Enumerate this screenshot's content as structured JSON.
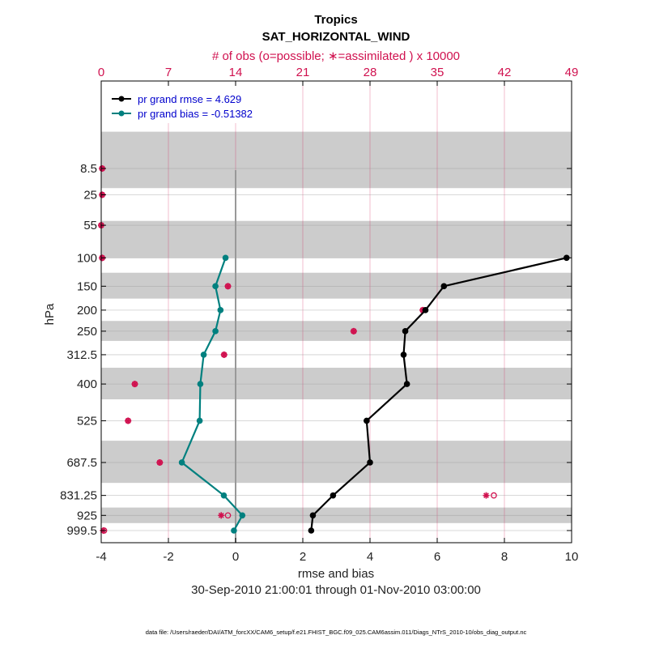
{
  "chart_data": {
    "type": "line",
    "title": "Tropics",
    "subtitle": "SAT_HORIZONTAL_WIND",
    "top_axis_label": "# of obs (o=possible; ∗=assimilated ) x 10000",
    "top_ticks": [
      "0",
      "7",
      "14",
      "21",
      "28",
      "35",
      "42",
      "49"
    ],
    "xlabel": "rmse and bias",
    "ylabel": "hPa",
    "date_range": "30-Sep-2010 21:00:01 through 01-Nov-2010 03:00:00",
    "footnote": "data file: /Users/raeder/DAI/ATM_forcXX/CAM6_setup/f.e21.FHIST_BGC.f09_025.CAM6assim.011/Diags_NTrS_2010-10/obs_diag_output.nc",
    "xlim": [
      -4,
      10
    ],
    "x_ticks": [
      -4,
      -2,
      0,
      2,
      4,
      6,
      8,
      10
    ],
    "x_tick_labels": [
      "-4",
      "-2",
      "0",
      "2",
      "4",
      "6",
      "8",
      "10"
    ],
    "obs_xlim": [
      0,
      49
    ],
    "levels": [
      "8.5",
      "25",
      "55",
      "100",
      "150",
      "200",
      "250",
      "312.5",
      "400",
      "525",
      "687.5",
      "831.25",
      "925",
      "999.5"
    ],
    "level_values": [
      8.5,
      25,
      55,
      100,
      150,
      200,
      250,
      312.5,
      400,
      525,
      687.5,
      831.25,
      925,
      999.5
    ],
    "shaded_bands": [
      [
        0,
        20
      ],
      [
        50,
        100
      ],
      [
        125,
        175
      ],
      [
        225,
        275
      ],
      [
        350,
        450
      ],
      [
        600,
        775
      ],
      [
        887.5,
        962.5
      ]
    ],
    "legend": {
      "position": "top-left",
      "entries": [
        "pr grand rmse = 4.629",
        "pr grand bias = -0.51382"
      ]
    },
    "series": [
      {
        "name": "pr grand rmse = 4.629",
        "color": "#000000",
        "points": [
          [
            9.85,
            100
          ],
          [
            6.2,
            150
          ],
          [
            5.65,
            200
          ],
          [
            5.05,
            250
          ],
          [
            5.0,
            312.5
          ],
          [
            5.1,
            400
          ],
          [
            3.9,
            525
          ],
          [
            4.0,
            687.5
          ],
          [
            2.9,
            831.25
          ],
          [
            2.3,
            925
          ],
          [
            2.25,
            999.5
          ]
        ]
      },
      {
        "name": "pr grand bias = -0.51382",
        "color": "#00807f",
        "points": [
          [
            -0.3,
            100
          ],
          [
            -0.6,
            150
          ],
          [
            -0.45,
            200
          ],
          [
            -0.6,
            250
          ],
          [
            -0.95,
            312.5
          ],
          [
            -1.05,
            400
          ],
          [
            -1.07,
            525
          ],
          [
            -1.6,
            687.5
          ],
          [
            -0.35,
            831.25
          ],
          [
            0.2,
            925
          ],
          [
            -0.05,
            999.5
          ]
        ]
      }
    ],
    "obs_counts": [
      {
        "level": 8.5,
        "possible": 0.1,
        "assimilated": 0.1
      },
      {
        "level": 25,
        "possible": 0.1,
        "assimilated": 0.1
      },
      {
        "level": 55,
        "possible": 0.0,
        "assimilated": 0.0
      },
      {
        "level": 100,
        "possible": 0.1,
        "assimilated": 0.1
      },
      {
        "level": 150,
        "possible": 13.2,
        "assimilated": 13.2
      },
      {
        "level": 200,
        "possible": 33.5,
        "assimilated": 33.5
      },
      {
        "level": 250,
        "possible": 26.3,
        "assimilated": 26.3
      },
      {
        "level": 312.5,
        "possible": 12.8,
        "assimilated": 12.8
      },
      {
        "level": 400,
        "possible": 3.5,
        "assimilated": 3.5
      },
      {
        "level": 525,
        "possible": 2.8,
        "assimilated": 2.8
      },
      {
        "level": 687.5,
        "possible": 6.1,
        "assimilated": 6.1
      },
      {
        "level": 831.25,
        "possible": 40.9,
        "assimilated": 40.1
      },
      {
        "level": 925,
        "possible": 13.2,
        "assimilated": 12.5
      },
      {
        "level": 999.5,
        "possible": 0.3,
        "assimilated": 0.2
      }
    ],
    "colors": {
      "rmse": "#000000",
      "bias": "#00807f",
      "obs": "#d0114f",
      "shade": "#cccccc",
      "zero_line": "#999999"
    }
  }
}
